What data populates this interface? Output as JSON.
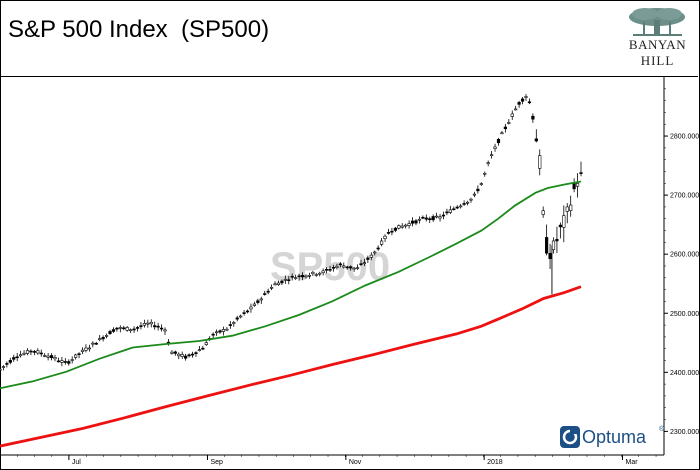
{
  "header": {
    "title": "S&P 500 Index  (SP500)",
    "logo_line1": "BANYAN",
    "logo_line2": "HILL"
  },
  "watermark": "SP500",
  "branding": {
    "name": "Optuma",
    "mark": "®"
  },
  "colors": {
    "ma_short": "#1a8a1a",
    "ma_long": "#ee1111",
    "candles": "#000000",
    "logo_tree": "#6d8f8a",
    "optuma": "#1c4f86"
  },
  "chart_data": {
    "type": "candlestick",
    "title": "S&P 500 Index  (SP500)",
    "x_labels": [
      "Jul",
      "Sep",
      "Nov",
      "2018",
      "Mar"
    ],
    "x_label_positions": [
      0.083,
      0.25,
      0.4167,
      0.5833,
      0.75
    ],
    "x_range": [
      0,
      0.8
    ],
    "y_ticks": [
      "2300.000",
      "2400.000",
      "2500.000",
      "2600.000",
      "2700.000",
      "2800.000"
    ],
    "y_tick_values": [
      2300,
      2400,
      2500,
      2600,
      2700,
      2800
    ],
    "y_range": [
      2260,
      2900
    ],
    "price_path": [
      [
        0.0,
        2405
      ],
      [
        0.02,
        2428
      ],
      [
        0.04,
        2437
      ],
      [
        0.06,
        2427
      ],
      [
        0.08,
        2415
      ],
      [
        0.1,
        2436
      ],
      [
        0.12,
        2455
      ],
      [
        0.14,
        2475
      ],
      [
        0.16,
        2473
      ],
      [
        0.18,
        2483
      ],
      [
        0.2,
        2472
      ],
      [
        0.205,
        2435
      ],
      [
        0.225,
        2425
      ],
      [
        0.245,
        2442
      ],
      [
        0.255,
        2462
      ],
      [
        0.275,
        2475
      ],
      [
        0.29,
        2495
      ],
      [
        0.3,
        2505
      ],
      [
        0.31,
        2518
      ],
      [
        0.33,
        2548
      ],
      [
        0.35,
        2560
      ],
      [
        0.37,
        2565
      ],
      [
        0.39,
        2570
      ],
      [
        0.41,
        2582
      ],
      [
        0.43,
        2575
      ],
      [
        0.45,
        2600
      ],
      [
        0.47,
        2640
      ],
      [
        0.49,
        2650
      ],
      [
        0.51,
        2660
      ],
      [
        0.53,
        2662
      ],
      [
        0.55,
        2680
      ],
      [
        0.57,
        2695
      ],
      [
        0.58,
        2720
      ],
      [
        0.59,
        2760
      ],
      [
        0.6,
        2790
      ],
      [
        0.615,
        2830
      ],
      [
        0.625,
        2855
      ],
      [
        0.635,
        2870
      ],
      [
        0.642,
        2840
      ],
      [
        0.65,
        2760
      ],
      [
        0.655,
        2650
      ],
      [
        0.66,
        2600
      ],
      [
        0.667,
        2610
      ],
      [
        0.675,
        2640
      ],
      [
        0.682,
        2660
      ],
      [
        0.69,
        2700
      ],
      [
        0.695,
        2725
      ],
      [
        0.7,
        2730
      ]
    ],
    "series": [
      {
        "name": "",
        "style": "line",
        "color": "#1a8a1a",
        "points": [
          [
            0.0,
            2373
          ],
          [
            0.04,
            2385
          ],
          [
            0.08,
            2401
          ],
          [
            0.12,
            2423
          ],
          [
            0.16,
            2442
          ],
          [
            0.2,
            2448
          ],
          [
            0.24,
            2453
          ],
          [
            0.28,
            2462
          ],
          [
            0.32,
            2478
          ],
          [
            0.36,
            2497
          ],
          [
            0.4,
            2520
          ],
          [
            0.44,
            2547
          ],
          [
            0.48,
            2570
          ],
          [
            0.52,
            2597
          ],
          [
            0.55,
            2618
          ],
          [
            0.58,
            2640
          ],
          [
            0.6,
            2660
          ],
          [
            0.62,
            2682
          ],
          [
            0.645,
            2704
          ],
          [
            0.66,
            2712
          ],
          [
            0.68,
            2718
          ],
          [
            0.7,
            2723
          ]
        ]
      },
      {
        "name": "",
        "style": "line",
        "color": "#ee1111",
        "points": [
          [
            0.0,
            2275
          ],
          [
            0.05,
            2290
          ],
          [
            0.1,
            2305
          ],
          [
            0.15,
            2323
          ],
          [
            0.2,
            2342
          ],
          [
            0.25,
            2360
          ],
          [
            0.3,
            2378
          ],
          [
            0.35,
            2395
          ],
          [
            0.4,
            2413
          ],
          [
            0.45,
            2430
          ],
          [
            0.5,
            2448
          ],
          [
            0.55,
            2465
          ],
          [
            0.58,
            2478
          ],
          [
            0.6,
            2490
          ],
          [
            0.63,
            2508
          ],
          [
            0.655,
            2525
          ],
          [
            0.68,
            2535
          ],
          [
            0.7,
            2545
          ]
        ]
      }
    ],
    "grid": false,
    "legend": "none"
  }
}
